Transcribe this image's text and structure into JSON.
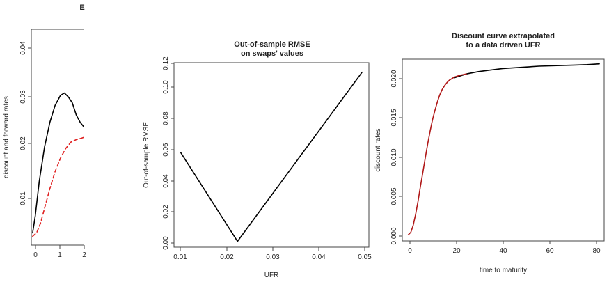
{
  "chart_data": [
    {
      "type": "line",
      "title": "E",
      "xlabel": "",
      "ylabel": "discount and forward rates",
      "xlim": [
        0,
        2
      ],
      "ylim": [
        0,
        0.044
      ],
      "x_ticks": [
        "0",
        "1",
        "2"
      ],
      "y_ticks": [
        "0.01",
        "0.02",
        "0.03",
        "0.04"
      ],
      "series": [
        {
          "style": "solid",
          "color": "#000000",
          "x": [
            0.05,
            0.15,
            0.3,
            0.5,
            0.7,
            0.9,
            1.1,
            1.25,
            1.4,
            1.55,
            1.7,
            1.85,
            2.0
          ],
          "y": [
            0.0025,
            0.006,
            0.013,
            0.02,
            0.025,
            0.0285,
            0.0305,
            0.031,
            0.0302,
            0.029,
            0.0265,
            0.025,
            0.024
          ]
        },
        {
          "style": "dashed",
          "color": "#e02020",
          "x": [
            0.05,
            0.2,
            0.35,
            0.5,
            0.7,
            0.9,
            1.1,
            1.3,
            1.5,
            1.7,
            1.9,
            2.0
          ],
          "y": [
            0.0018,
            0.0025,
            0.0045,
            0.0075,
            0.0115,
            0.015,
            0.0177,
            0.0197,
            0.021,
            0.0215,
            0.0218,
            0.022
          ]
        }
      ]
    },
    {
      "type": "line",
      "title": "Out-of-sample RMSE\non swaps' values",
      "xlabel": "UFR",
      "ylabel": "Out-of-sample RMSE",
      "xlim": [
        0.0085,
        0.0515
      ],
      "ylim": [
        -0.004,
        0.122
      ],
      "x_ticks": [
        "0.01",
        "0.02",
        "0.03",
        "0.04",
        "0.05"
      ],
      "y_ticks": [
        "0.00",
        "0.02",
        "0.04",
        "0.06",
        "0.08",
        "0.10",
        "0.12"
      ],
      "series": [
        {
          "style": "solid",
          "color": "#000000",
          "x": [
            0.01,
            0.0225,
            0.05
          ],
          "y": [
            0.0605,
            0.0,
            0.1155
          ]
        }
      ]
    },
    {
      "type": "line",
      "title": "Discount curve extrapolated\nto a data driven UFR",
      "xlabel": "time to maturity",
      "ylabel": "discount rates",
      "xlim": [
        -1.5,
        82
      ],
      "ylim": [
        -0.0008,
        0.0226
      ],
      "x_ticks": [
        "0",
        "20",
        "40",
        "60",
        "80"
      ],
      "y_ticks": [
        "0.000",
        "0.005",
        "0.010",
        "0.015",
        "0.020"
      ],
      "series": [
        {
          "style": "solid",
          "color": "#000000",
          "x": [
            20,
            25,
            30,
            35,
            40,
            45,
            50,
            55,
            60,
            65,
            70,
            75,
            80
          ],
          "y": [
            0.0202,
            0.0207,
            0.021,
            0.0212,
            0.0214,
            0.0215,
            0.0216,
            0.0217,
            0.02175,
            0.0218,
            0.02185,
            0.0219,
            0.022
          ]
        },
        {
          "style": "solid",
          "color": "#b01818",
          "x": [
            1,
            2,
            3,
            4,
            5,
            6,
            7,
            8,
            9,
            10,
            11,
            12,
            13,
            14,
            15,
            16,
            17,
            18,
            19,
            20,
            22,
            25
          ],
          "y": [
            0.0,
            0.0003,
            0.0012,
            0.0026,
            0.0043,
            0.0062,
            0.008,
            0.0099,
            0.0117,
            0.0133,
            0.0148,
            0.016,
            0.0171,
            0.018,
            0.0187,
            0.0192,
            0.0196,
            0.0199,
            0.0201,
            0.0203,
            0.0205,
            0.0207
          ]
        }
      ]
    }
  ]
}
